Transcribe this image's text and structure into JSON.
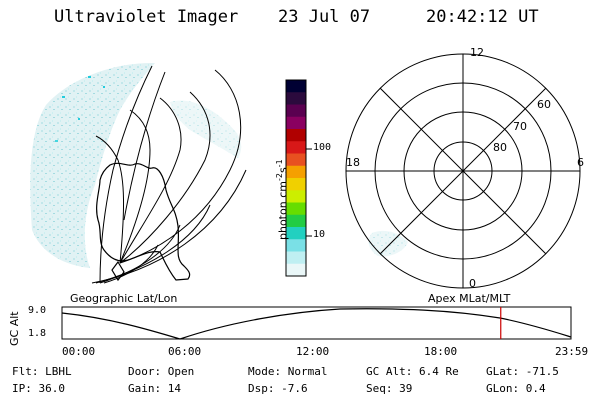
{
  "header": {
    "instrument": "Ultraviolet Imager",
    "date": "23 Jul 07",
    "time": "20:42:12 UT"
  },
  "left_panel": {
    "caption": "Geographic Lat/Lon"
  },
  "right_panel": {
    "caption": "Apex MLat/MLT",
    "mlt_labels": {
      "top": "12",
      "right": "6",
      "bottom": "0",
      "left": "18"
    },
    "lat_labels": [
      "60",
      "70",
      "80"
    ]
  },
  "colorbar": {
    "unit_label": "photon cm",
    "unit_sup1": "-2",
    "unit_mid": "s",
    "unit_sup2": "-1",
    "ticks": [
      "100",
      "10"
    ],
    "colors": [
      "#000033",
      "#2b0a3d",
      "#5a0050",
      "#8a0060",
      "#b00000",
      "#d81818",
      "#e85020",
      "#f5a000",
      "#f0d000",
      "#ccee00",
      "#66dd00",
      "#22cc44",
      "#22d0c0",
      "#7ae0e6",
      "#bfeff2",
      "#eaf7f8"
    ]
  },
  "altitude_strip": {
    "ylabel": "GC Alt",
    "ticks": [
      "9.0",
      "1.8"
    ],
    "time_ticks": [
      "00:00",
      "06:00",
      "12:00",
      "18:00",
      "23:59"
    ],
    "current_time_fraction": 0.862
  },
  "info": {
    "flt_label": "Flt:",
    "flt_value": "LBHL",
    "ip_label": "IP:",
    "ip_value": "36.0",
    "door_label": "Door:",
    "door_value": "Open",
    "gain_label": "Gain:",
    "gain_value": "14",
    "mode_label": "Mode:",
    "mode_value": "Normal",
    "dsp_label": "Dsp:",
    "dsp_value": "-7.6",
    "gcalt_label": "GC Alt:",
    "gcalt_value": "6.4 Re",
    "seq_label": "Seq:",
    "seq_value": "39",
    "glat_label": "GLat:",
    "glat_value": "-71.5",
    "glon_label": "GLon:",
    "glon_value": "0.4"
  }
}
